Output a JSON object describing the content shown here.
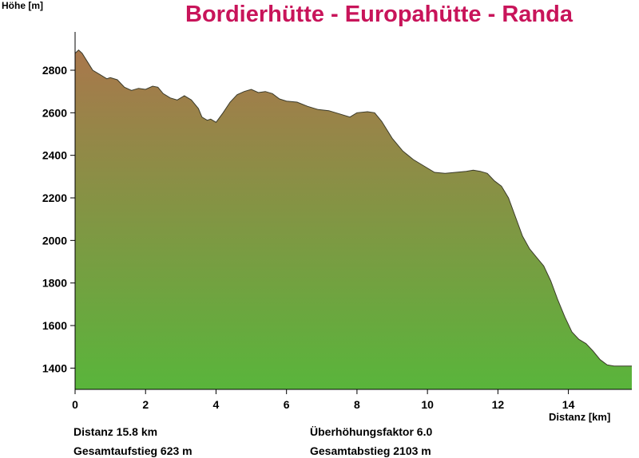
{
  "title": "Bordierhütte - Europahütte - Randa",
  "chart_data": {
    "type": "area",
    "title": "Bordierhütte - Europahütte - Randa",
    "xlabel": "Distanz [km]",
    "ylabel": "Höhe [m]",
    "xlim": [
      0,
      15.8
    ],
    "ylim": [
      1300,
      2980
    ],
    "x_ticks": [
      0,
      2,
      4,
      6,
      8,
      10,
      12,
      14
    ],
    "y_ticks": [
      1400,
      1600,
      1800,
      2000,
      2200,
      2400,
      2600,
      2800
    ],
    "grid": false,
    "fill_gradient": {
      "top": "#a9774c",
      "bottom": "#59b53b"
    },
    "x": [
      0,
      0.1,
      0.2,
      0.35,
      0.5,
      0.7,
      0.9,
      1.0,
      1.2,
      1.4,
      1.6,
      1.8,
      2.0,
      2.2,
      2.35,
      2.5,
      2.7,
      2.9,
      3.1,
      3.3,
      3.5,
      3.6,
      3.75,
      3.85,
      4.0,
      4.2,
      4.4,
      4.6,
      4.8,
      5.0,
      5.2,
      5.4,
      5.6,
      5.8,
      6.0,
      6.3,
      6.6,
      6.9,
      7.2,
      7.5,
      7.8,
      8.0,
      8.3,
      8.5,
      8.7,
      9.0,
      9.3,
      9.6,
      9.9,
      10.2,
      10.5,
      10.8,
      11.1,
      11.3,
      11.5,
      11.7,
      11.9,
      12.1,
      12.3,
      12.5,
      12.7,
      12.9,
      13.1,
      13.3,
      13.5,
      13.7,
      13.9,
      14.1,
      14.3,
      14.5,
      14.7,
      14.9,
      15.1,
      15.3,
      15.5,
      15.8
    ],
    "values": [
      2880,
      2895,
      2880,
      2840,
      2800,
      2780,
      2760,
      2765,
      2755,
      2720,
      2705,
      2715,
      2710,
      2725,
      2720,
      2690,
      2670,
      2660,
      2680,
      2660,
      2620,
      2580,
      2565,
      2570,
      2555,
      2600,
      2650,
      2685,
      2700,
      2710,
      2695,
      2700,
      2690,
      2665,
      2655,
      2650,
      2630,
      2615,
      2610,
      2595,
      2580,
      2600,
      2605,
      2600,
      2560,
      2480,
      2420,
      2380,
      2350,
      2320,
      2315,
      2320,
      2325,
      2330,
      2325,
      2315,
      2280,
      2255,
      2200,
      2110,
      2020,
      1960,
      1920,
      1880,
      1810,
      1720,
      1640,
      1570,
      1535,
      1515,
      1480,
      1440,
      1415,
      1410,
      1410,
      1410
    ]
  },
  "stats": {
    "distance": "Distanz 15.8 km",
    "ascent": "Gesamtaufstieg  623 m",
    "exaggeration": "Überhöhungsfaktor 6.0",
    "descent": "Gesamtabstieg  2103 m"
  }
}
